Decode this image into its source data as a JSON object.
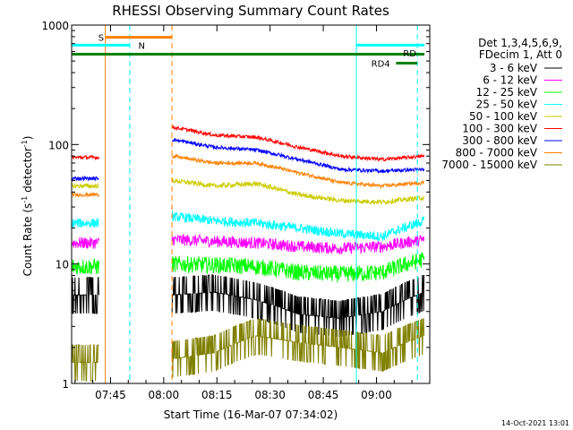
{
  "chart_data": {
    "type": "line",
    "title": "RHESSI Observing Summary Count Rates",
    "xlabel": "Start Time (16-Mar-07 07:34:02)",
    "ylabel_main": "Count Rate (s",
    "ylabel_sup1": "-1",
    "ylabel_mid": " detector",
    "ylabel_sup2": "-1",
    "ylabel_end": ")",
    "yscale": "log",
    "ylim": [
      1,
      1000
    ],
    "xlim_minutes": [
      0,
      101
    ],
    "x_ticks": [
      {
        "label": "07:45",
        "minute": 10.97
      },
      {
        "label": "08:00",
        "minute": 25.97
      },
      {
        "label": "08:15",
        "minute": 40.97
      },
      {
        "label": "08:30",
        "minute": 55.97
      },
      {
        "label": "08:45",
        "minute": 70.97
      },
      {
        "label": "09:00",
        "minute": 85.97
      }
    ],
    "y_ticks": [
      {
        "label": "1",
        "value": 1
      },
      {
        "label": "10",
        "value": 10
      },
      {
        "label": "100",
        "value": 100
      },
      {
        "label": "1000",
        "value": 1000
      }
    ],
    "legend_header": [
      "Det 1,3,4,5,6,9,",
      "FDecim 1, Att 0"
    ],
    "legend_position": "right",
    "series": [
      {
        "name": "3 - 6 keV",
        "color": "#000000",
        "seg1": 5.5,
        "seg2": 5.5,
        "seg3": 5.5,
        "noise": 0.16,
        "shape": [
          5.5,
          5.8,
          5.0,
          3.8,
          3.5,
          4.0,
          5.8
        ]
      },
      {
        "name": "6 - 12 keV",
        "color": "#ff00ff",
        "seg1": 15,
        "seg2": 16,
        "seg3": 16,
        "noise": 0.05,
        "shape": [
          16,
          15.5,
          15,
          14,
          13.5,
          14,
          16
        ]
      },
      {
        "name": "12 - 25 keV",
        "color": "#00ff00",
        "seg1": 9.5,
        "seg2": 10,
        "seg3": 10,
        "noise": 0.07,
        "shape": [
          10,
          9.8,
          9.5,
          8.5,
          8.2,
          8.5,
          11
        ]
      },
      {
        "name": "25 - 50 keV",
        "color": "#00ffff",
        "seg1": 22,
        "seg2": 25,
        "seg3": 25,
        "noise": 0.04,
        "shape": [
          25,
          23,
          22,
          20,
          18,
          17,
          23
        ]
      },
      {
        "name": "50 - 100 keV",
        "color": "#cccc00",
        "seg1": 45,
        "seg2": 50,
        "seg3": 50,
        "noise": 0.02,
        "shape": [
          50,
          45,
          47,
          38,
          34,
          33,
          36
        ]
      },
      {
        "name": "100 - 300 keV",
        "color": "#ff0000",
        "seg1": 78,
        "seg2": 140,
        "seg3": 140,
        "noise": 0.015,
        "shape": [
          140,
          120,
          115,
          95,
          80,
          75,
          80
        ]
      },
      {
        "name": "300 - 800 keV",
        "color": "#0000ff",
        "seg1": 52,
        "seg2": 110,
        "seg3": 110,
        "noise": 0.015,
        "shape": [
          110,
          95,
          90,
          75,
          62,
          60,
          62
        ]
      },
      {
        "name": "800 - 7000 keV",
        "color": "#ff8000",
        "seg1": 38,
        "seg2": 80,
        "seg3": 80,
        "noise": 0.015,
        "shape": [
          80,
          70,
          70,
          58,
          48,
          45,
          48
        ]
      },
      {
        "name": "7000 - 15000 keV",
        "color": "#808000",
        "seg1": 1.5,
        "seg2": 1.5,
        "seg3": 1.5,
        "noise": 0.35,
        "shape": [
          1.6,
          1.8,
          2.5,
          2.2,
          2.0,
          1.8,
          2.5
        ]
      }
    ],
    "data_segments_minutes": [
      [
        0,
        7.8
      ],
      [
        28.3,
        84.5
      ],
      [
        84.5,
        99.5
      ]
    ],
    "solid_vlines": [
      {
        "minute": 0,
        "color": "#00ffff"
      },
      {
        "minute": 9.5,
        "color": "#ff8000"
      },
      {
        "minute": 80.3,
        "color": "#00ffff"
      }
    ],
    "dashed_vlines": [
      {
        "minute": 16.4,
        "color": "#00ffff"
      },
      {
        "minute": 28.3,
        "color": "#ff8000"
      },
      {
        "minute": 97.5,
        "color": "#00ffff"
      }
    ],
    "flag_bars": [
      {
        "label": "S",
        "color": "#ff8000",
        "x0": 9.5,
        "x1": 28.3,
        "y": 790,
        "label_minute": 7.5
      },
      {
        "label": "N",
        "color": "#00ffff",
        "x0": 0,
        "x1": 16.4,
        "y": 680,
        "label_minute": 18.8
      },
      {
        "label": "",
        "color": "#00ffff",
        "x0": 80.3,
        "x1": 99.5,
        "y": 680,
        "label_minute": 0
      },
      {
        "label": "",
        "color": "#008000",
        "x0": 0,
        "x1": 99.5,
        "y": 570,
        "label_minute": 0
      },
      {
        "label": "RD4",
        "color": "#008000",
        "x0": 91.5,
        "x1": 97.5,
        "y": 480,
        "label_minute": 84.5
      }
    ],
    "rd_label": {
      "text": "RD",
      "color": "#008000",
      "minute": 93.5,
      "y": 585
    },
    "footer_date": "14-Oct-2021 13:01"
  }
}
